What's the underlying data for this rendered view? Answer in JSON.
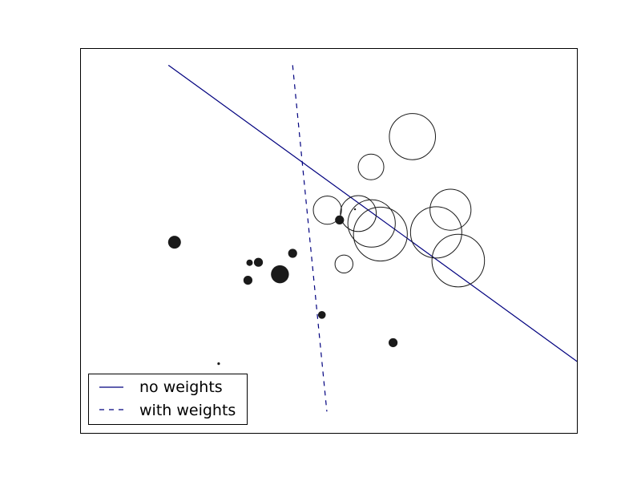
{
  "chart_data": {
    "type": "scatter",
    "title": "",
    "xlabel": "",
    "ylabel": "",
    "xlim": [
      -4,
      5
    ],
    "ylim": [
      -4,
      5
    ],
    "grid": false,
    "ticks_visible": false,
    "legend": {
      "placement": "lower-left",
      "entries": [
        {
          "label": "no weights",
          "line_style": "solid"
        },
        {
          "label": "with weights",
          "line_style": "dashed"
        }
      ]
    },
    "colors": {
      "line": "#00007f",
      "filled_points": "#1a1a1a",
      "hollow_points": "#1a1a1a"
    },
    "series": [
      {
        "kind": "filled_class",
        "points": [
          {
            "x": -2.29,
            "y": 0.46,
            "weight": 1.0
          },
          {
            "x": -0.77,
            "y": -0.01,
            "weight": 0.7
          },
          {
            "x": -0.38,
            "y": -0.29,
            "weight": 1.4
          },
          {
            "x": -0.96,
            "y": -0.43,
            "weight": 0.7
          },
          {
            "x": -0.93,
            "y": -0.02,
            "weight": 0.5
          },
          {
            "x": -0.15,
            "y": 0.2,
            "weight": 0.7
          },
          {
            "x": 0.38,
            "y": -1.24,
            "weight": 0.6
          },
          {
            "x": 1.67,
            "y": -1.89,
            "weight": 0.7
          },
          {
            "x": 0.7,
            "y": 0.98,
            "weight": 0.7
          },
          {
            "x": -1.49,
            "y": -2.38,
            "weight": 0.2
          },
          {
            "x": 0.98,
            "y": 1.23,
            "weight": 0.1
          }
        ]
      },
      {
        "kind": "hollow_class",
        "points": [
          {
            "x": 2.02,
            "y": 2.93,
            "weight": 3.6
          },
          {
            "x": 1.27,
            "y": 2.22,
            "weight": 2.0
          },
          {
            "x": 0.48,
            "y": 1.21,
            "weight": 2.2
          },
          {
            "x": 1.04,
            "y": 1.13,
            "weight": 2.8
          },
          {
            "x": 1.28,
            "y": 0.9,
            "weight": 3.7
          },
          {
            "x": 1.44,
            "y": 0.65,
            "weight": 4.2
          },
          {
            "x": 2.71,
            "y": 1.22,
            "weight": 3.2
          },
          {
            "x": 2.45,
            "y": 0.69,
            "weight": 4.0
          },
          {
            "x": 2.85,
            "y": 0.03,
            "weight": 4.1
          },
          {
            "x": 0.78,
            "y": -0.05,
            "weight": 1.4
          }
        ]
      }
    ],
    "lines": [
      {
        "label": "no weights",
        "x": [
          -2.4,
          5.4
        ],
        "y": [
          4.6,
          -2.7
        ]
      },
      {
        "label": "with weights",
        "x": [
          -0.15,
          0.47
        ],
        "y": [
          4.6,
          -3.5
        ]
      }
    ]
  }
}
